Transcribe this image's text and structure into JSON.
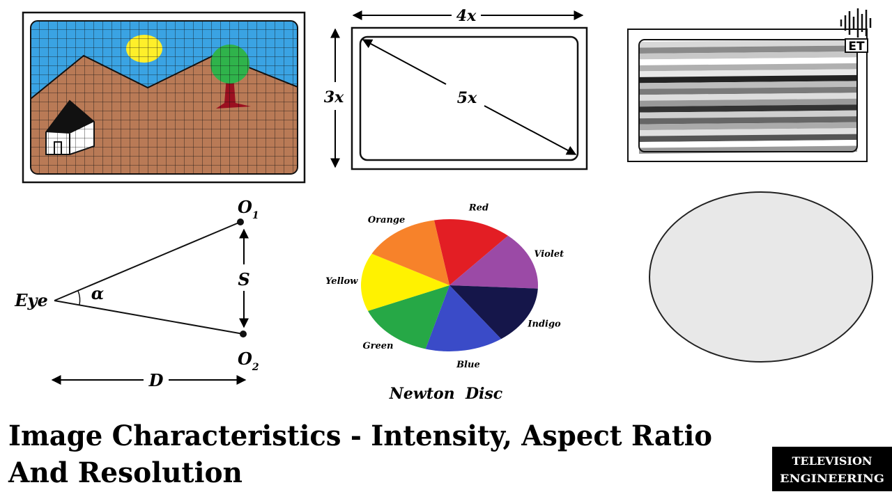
{
  "aspect_ratio": {
    "width_label": "4x",
    "height_label": "3x",
    "diagonal_label": "5x"
  },
  "logo": {
    "text": "ET"
  },
  "visual_angle": {
    "eye": "Eye",
    "angle": "α",
    "separation": "S",
    "distance": "D",
    "top_point": {
      "label": "O",
      "subscript": "1"
    },
    "bottom_point": {
      "label": "O",
      "subscript": "2"
    }
  },
  "newton_disc": {
    "caption": "Newton  Disc",
    "sectors": [
      {
        "label": "Red",
        "color": "#e31e24"
      },
      {
        "label": "Violet",
        "color": "#9b4aa6"
      },
      {
        "label": "Indigo",
        "color": "#15164a"
      },
      {
        "label": "Blue",
        "color": "#3a4bc8"
      },
      {
        "label": "Green",
        "color": "#26a846"
      },
      {
        "label": "Yellow",
        "color": "#fff200"
      },
      {
        "label": "Orange",
        "color": "#f7822a"
      }
    ]
  },
  "header": {
    "title_lines": [
      "Image Characteristics - Intensity, Aspect Ratio",
      "And Resolution"
    ]
  },
  "badge": {
    "lines": [
      "TELEVISION",
      "ENGINEERING"
    ]
  }
}
